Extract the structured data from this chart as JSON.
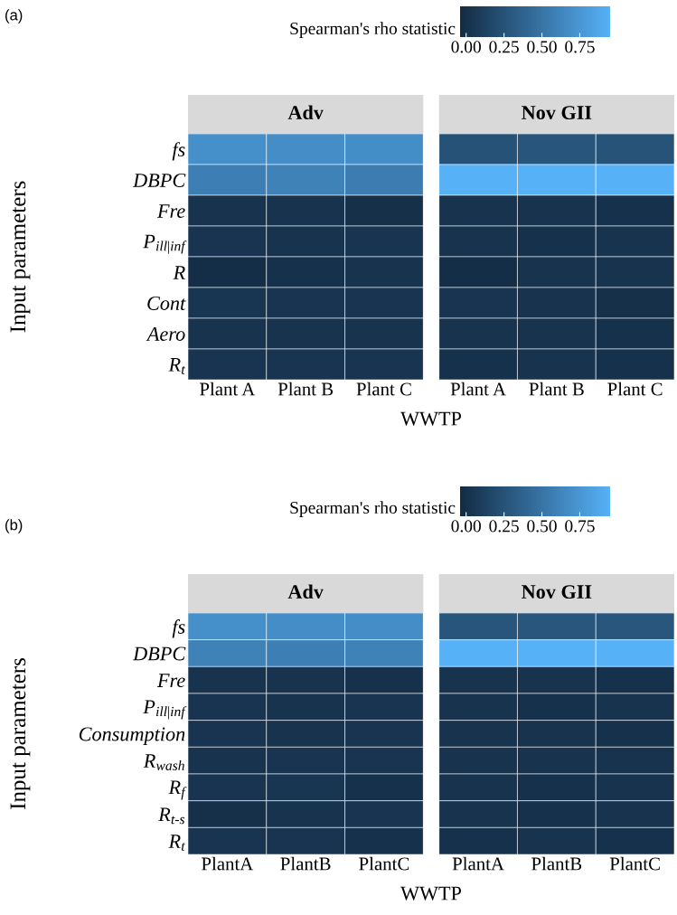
{
  "chart_data": [
    {
      "type": "heatmap",
      "annotations": [
        "(a)",
        "Adv",
        "Nov GII"
      ],
      "xlabel": "WWTP",
      "ylabel": "Input parameters",
      "clabel": "Spearman's rho statistic",
      "categories": [
        "Plant A",
        "Plant B",
        "Plant C",
        "Plant A",
        "Plant B",
        "Plant C"
      ],
      "y_categories": [
        "fs",
        "DBPC",
        "Fre",
        "P$_{ill|inf}$",
        "R",
        "Cont",
        "Aero",
        "R$_{t}$"
      ],
      "cells": [
        [
          0.7,
          0.68,
          0.69,
          0.25,
          0.27,
          0.26
        ],
        [
          0.58,
          0.6,
          0.56,
          0.95,
          0.95,
          0.95
        ],
        [
          0.02,
          0.02,
          0.0,
          0.02,
          0.02,
          0.01
        ],
        [
          0.03,
          0.02,
          0.03,
          0.02,
          0.01,
          0.02
        ],
        [
          -0.02,
          0.01,
          0.02,
          -0.02,
          0.02,
          0.02
        ],
        [
          0.04,
          0.03,
          0.03,
          0.03,
          0.02,
          0.0
        ],
        [
          0.02,
          0.02,
          0.02,
          0.02,
          0.02,
          0.01
        ],
        [
          0.03,
          0.03,
          0.03,
          0.01,
          0.02,
          0.01
        ]
      ],
      "clim": [
        -0.04,
        0.95
      ],
      "cticks": [
        {
          "value": 0,
          "label": "0.00"
        },
        {
          "value": 0.25,
          "label": "0.25"
        },
        {
          "value": 0.5,
          "label": "0.50"
        },
        {
          "value": 0.75,
          "label": "0.75"
        }
      ]
    },
    {
      "type": "heatmap",
      "annotations": [
        "(b)",
        "Adv",
        "Nov GII"
      ],
      "xlabel": "WWTP",
      "ylabel": "Input parameters",
      "clabel": "Spearman's rho statistic",
      "categories": [
        "PlantA",
        "PlantB",
        "PlantC",
        "PlantA",
        "PlantB",
        "PlantC"
      ],
      "y_categories": [
        "fs",
        "DBPC",
        "Fre",
        "P$_{ill|inf}$",
        "Consumption",
        "R$_{wash}$",
        "R$_{f}$",
        "R$_{t-s}$",
        "R$_{t}$"
      ],
      "cells": [
        [
          0.7,
          0.68,
          0.68,
          0.27,
          0.28,
          0.28
        ],
        [
          0.6,
          0.58,
          0.6,
          0.95,
          0.95,
          0.95
        ],
        [
          0.02,
          0.02,
          0.01,
          0.02,
          0.02,
          0.01
        ],
        [
          0.03,
          0.02,
          0.03,
          0.02,
          0.01,
          0.02
        ],
        [
          0.03,
          0.02,
          0.03,
          0.02,
          0.02,
          0.01
        ],
        [
          0.02,
          0.03,
          0.03,
          0.02,
          0.02,
          0.02
        ],
        [
          0.03,
          0.04,
          0.01,
          0.02,
          0.01,
          0.02
        ],
        [
          0.0,
          0.02,
          0.03,
          0.02,
          0.01,
          0.02
        ],
        [
          0.03,
          0.03,
          0.01,
          0.01,
          0.02,
          0.01
        ]
      ],
      "clim": [
        -0.04,
        0.95
      ],
      "cticks": [
        {
          "value": 0,
          "label": "0.00"
        },
        {
          "value": 0.25,
          "label": "0.25"
        },
        {
          "value": 0.5,
          "label": "0.50"
        },
        {
          "value": 0.75,
          "label": "0.75"
        }
      ]
    }
  ]
}
